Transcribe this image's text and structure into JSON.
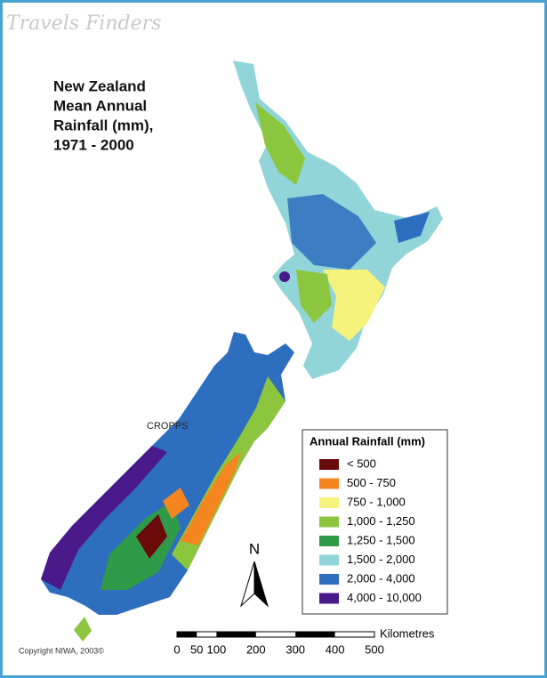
{
  "watermark": "Travels Finders",
  "title": [
    "New Zealand",
    "Mean Annual",
    "Rainfall (mm),",
    "1971 - 2000"
  ],
  "place_label": "CROPPS",
  "legend": {
    "title": "Annual Rainfall (mm)",
    "items": [
      {
        "label": "< 500",
        "color": "#6b0a0a"
      },
      {
        "label": "500 - 750",
        "color": "#f5861f"
      },
      {
        "label": "750 - 1,000",
        "color": "#f6f37c"
      },
      {
        "label": "1,000 - 1,250",
        "color": "#8cc63e"
      },
      {
        "label": "1,250 - 1,500",
        "color": "#2f9a47"
      },
      {
        "label": "1,500 - 2,000",
        "color": "#92d5d8"
      },
      {
        "label": "2,000 - 4,000",
        "color": "#2e6ebf"
      },
      {
        "label": "4,000 - 10,000",
        "color": "#4a1a8a"
      }
    ]
  },
  "north": "N",
  "scale": {
    "ticks": [
      0,
      50,
      100,
      200,
      300,
      400,
      500
    ],
    "unit": "Kilometres"
  },
  "copyright": "Copyright NIWA, 2003©"
}
